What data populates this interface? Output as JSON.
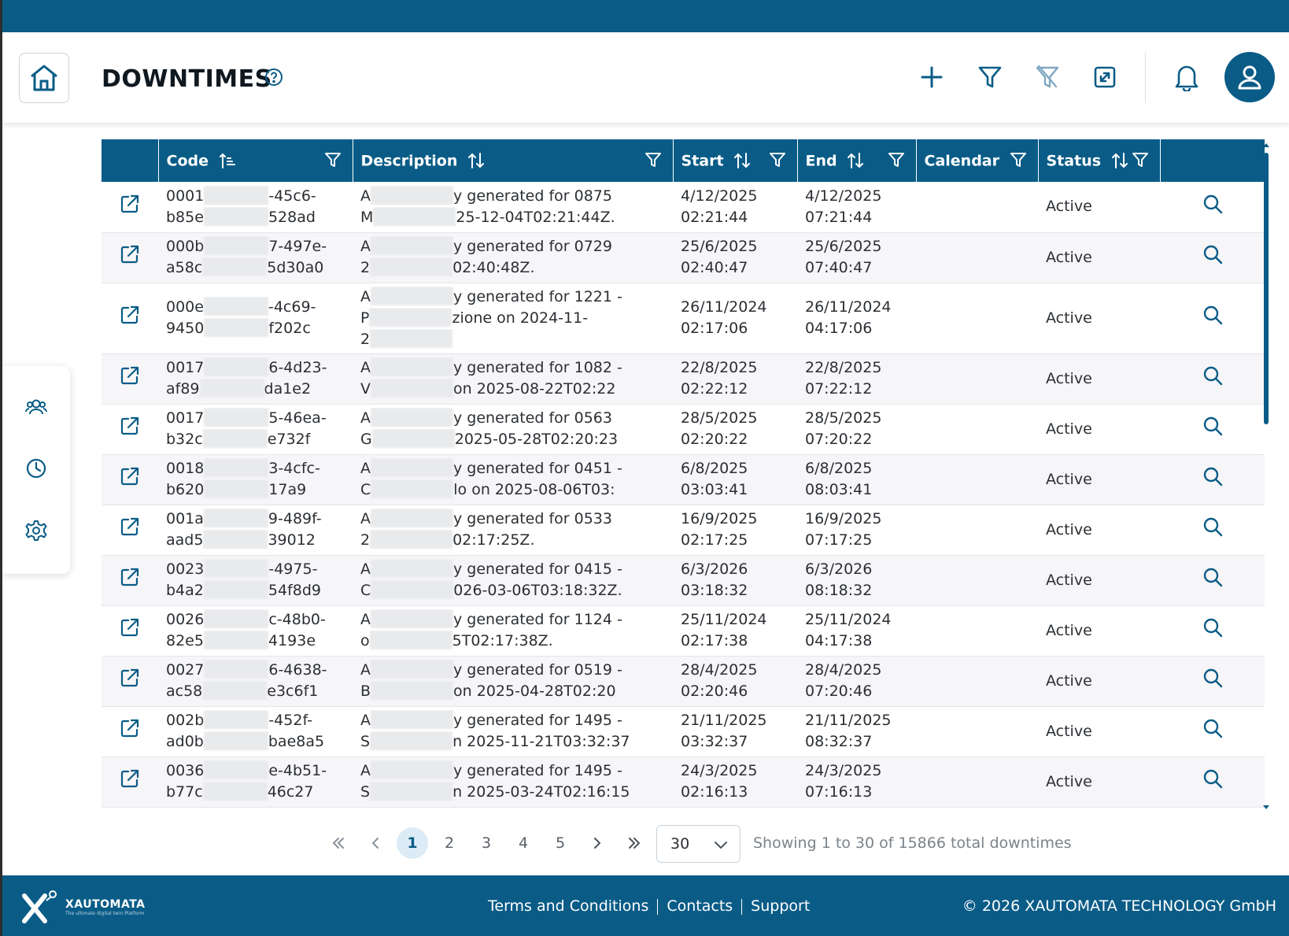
{
  "header": {
    "title": "DOWNTIMES"
  },
  "table": {
    "columns": [
      "Code",
      "Description",
      "Start",
      "End",
      "Calendar",
      "Status"
    ],
    "rows": [
      {
        "code1": "0001",
        "code1b": "-45c6-",
        "code2": "b85e",
        "code2b": "528ad",
        "desc1a": "A",
        "desc1b": "y generated for 0875",
        "desc2a": "M",
        "desc2b": "25-12-04T02:21:44Z.",
        "desc3a": "",
        "start1": "4/12/2025",
        "start2": "02:21:44",
        "end1": "4/12/2025",
        "end2": "07:21:44",
        "calendar": "",
        "status": "Active"
      },
      {
        "code1": "000b",
        "code1b": "7-497e-",
        "code2": "a58c",
        "code2b": "5d30a0",
        "desc1a": "A",
        "desc1b": "y generated for 0729",
        "desc2a": "2",
        "desc2b": "02:40:48Z.",
        "desc3a": "",
        "start1": "25/6/2025",
        "start2": "02:40:47",
        "end1": "25/6/2025",
        "end2": "07:40:47",
        "calendar": "",
        "status": "Active"
      },
      {
        "code1": "000e",
        "code1b": "-4c69-",
        "code2": "9450",
        "code2b": "f202c",
        "desc1a": "A",
        "desc1b": "y generated for 1221 -",
        "desc2a": "P",
        "desc2b": "zione on 2024-11-",
        "desc3a": "2",
        "start1": "26/11/2024",
        "start2": "02:17:06",
        "end1": "26/11/2024",
        "end2": "04:17:06",
        "calendar": "",
        "status": "Active"
      },
      {
        "code1": "0017",
        "code1b": "6-4d23-",
        "code2": "af89",
        "code2b": "da1e2",
        "desc1a": "A",
        "desc1b": "y generated for 1082 -",
        "desc2a": "V",
        "desc2b": "on 2025-08-22T02:22",
        "desc3a": "",
        "start1": "22/8/2025",
        "start2": "02:22:12",
        "end1": "22/8/2025",
        "end2": "07:22:12",
        "calendar": "",
        "status": "Active"
      },
      {
        "code1": "0017",
        "code1b": "5-46ea-",
        "code2": "b32c",
        "code2b": "e732f",
        "desc1a": "A",
        "desc1b": "y generated for 0563",
        "desc2a": "G",
        "desc2b": "2025-05-28T02:20:23",
        "desc3a": "",
        "start1": "28/5/2025",
        "start2": "02:20:22",
        "end1": "28/5/2025",
        "end2": "07:20:22",
        "calendar": "",
        "status": "Active"
      },
      {
        "code1": "0018",
        "code1b": "3-4cfc-",
        "code2": "b620",
        "code2b": "17a9",
        "desc1a": "A",
        "desc1b": "y generated for 0451 -",
        "desc2a": "C",
        "desc2b": "lo on 2025-08-06T03:",
        "desc3a": "",
        "start1": "6/8/2025",
        "start2": "03:03:41",
        "end1": "6/8/2025",
        "end2": "08:03:41",
        "calendar": "",
        "status": "Active"
      },
      {
        "code1": "001a",
        "code1b": "9-489f-",
        "code2": "aad5",
        "code2b": "39012",
        "desc1a": "A",
        "desc1b": "y generated for 0533",
        "desc2a": "2",
        "desc2b": "02:17:25Z.",
        "desc3a": "",
        "start1": "16/9/2025",
        "start2": "02:17:25",
        "end1": "16/9/2025",
        "end2": "07:17:25",
        "calendar": "",
        "status": "Active"
      },
      {
        "code1": "0023",
        "code1b": "-4975-",
        "code2": "b4a2",
        "code2b": "54f8d9",
        "desc1a": "A",
        "desc1b": "y generated for 0415 -",
        "desc2a": "C",
        "desc2b": "026-03-06T03:18:32Z.",
        "desc3a": "",
        "start1": "6/3/2026",
        "start2": "03:18:32",
        "end1": "6/3/2026",
        "end2": "08:18:32",
        "calendar": "",
        "status": "Active"
      },
      {
        "code1": "0026",
        "code1b": "c-48b0-",
        "code2": "82e5",
        "code2b": "4193e",
        "desc1a": "A",
        "desc1b": "y generated for 1124 -",
        "desc2a": "o",
        "desc2b": "5T02:17:38Z.",
        "desc3a": "",
        "start1": "25/11/2024",
        "start2": "02:17:38",
        "end1": "25/11/2024",
        "end2": "04:17:38",
        "calendar": "",
        "status": "Active"
      },
      {
        "code1": "0027",
        "code1b": "6-4638-",
        "code2": "ac58",
        "code2b": "e3c6f1",
        "desc1a": "A",
        "desc1b": "y generated for 0519 -",
        "desc2a": "B",
        "desc2b": "on 2025-04-28T02:20",
        "desc3a": "",
        "start1": "28/4/2025",
        "start2": "02:20:46",
        "end1": "28/4/2025",
        "end2": "07:20:46",
        "calendar": "",
        "status": "Active"
      },
      {
        "code1": "002b",
        "code1b": "-452f-",
        "code2": "ad0b",
        "code2b": "bae8a5",
        "desc1a": "A",
        "desc1b": "y generated for 1495 -",
        "desc2a": "S",
        "desc2b": "n 2025-11-21T03:32:37",
        "desc3a": "",
        "start1": "21/11/2025",
        "start2": "03:32:37",
        "end1": "21/11/2025",
        "end2": "08:32:37",
        "calendar": "",
        "status": "Active"
      },
      {
        "code1": "0036",
        "code1b": "e-4b51-",
        "code2": "b77c",
        "code2b": "46c27",
        "desc1a": "A",
        "desc1b": "y generated for 1495 -",
        "desc2a": "S",
        "desc2b": "n 2025-03-24T02:16:15",
        "desc3a": "",
        "start1": "24/3/2025",
        "start2": "02:16:13",
        "end1": "24/3/2025",
        "end2": "07:16:13",
        "calendar": "",
        "status": "Active"
      }
    ]
  },
  "pagination": {
    "pages": [
      "1",
      "2",
      "3",
      "4",
      "5"
    ],
    "active_page": "1",
    "page_size": "30",
    "info": "Showing 1 to 30 of 15866 total downtimes"
  },
  "footer": {
    "brand": "XAUTOMATA",
    "tagline": "The ultimate digital twin Platform",
    "links": [
      "Terms and Conditions",
      "Contacts",
      "Support"
    ],
    "copyright": "© 2026 XAUTOMATA TECHNOLOGY GmbH"
  },
  "colors": {
    "primary": "#0a5c87",
    "row_alt": "#f6f5f7",
    "active_page_bg": "#dcebf5"
  },
  "icons": [
    "home-icon",
    "help-icon",
    "plus-icon",
    "filter-icon",
    "filter-clear-icon",
    "expand-icon",
    "bell-icon",
    "user-icon",
    "users-icon",
    "clock-icon",
    "gear-icon",
    "external-link-icon",
    "search-icon",
    "sort-icon"
  ]
}
